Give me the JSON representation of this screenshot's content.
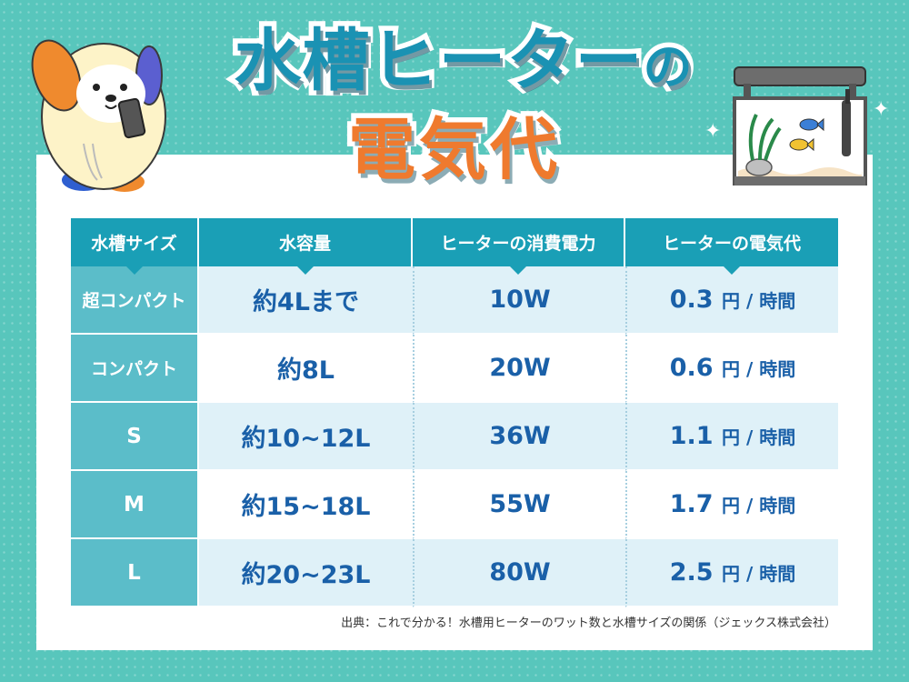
{
  "title": {
    "main": "水槽ヒーター",
    "particle": "の",
    "sub": "電気代"
  },
  "table": {
    "headers": [
      "水槽サイズ",
      "水容量",
      "ヒーターの消費電力",
      "ヒーターの電気代"
    ],
    "unit_label": "円 / 時間",
    "rows": [
      {
        "size": "超コンパクト",
        "volume": "約4Lまで",
        "power": "10W",
        "cost": "0.3"
      },
      {
        "size": "コンパクト",
        "volume": "約8L",
        "power": "20W",
        "cost": "0.6"
      },
      {
        "size": "S",
        "volume": "約10~12L",
        "power": "36W",
        "cost": "1.1"
      },
      {
        "size": "M",
        "volume": "約15~18L",
        "power": "55W",
        "cost": "1.7"
      },
      {
        "size": "L",
        "volume": "約20~23L",
        "power": "80W",
        "cost": "2.5"
      }
    ]
  },
  "source": "出典：これで分かる！水槽用ヒーターのワット数と水槽サイズの関係（ジェックス株式会社）",
  "icons": [
    "mascot-dog-icon",
    "smartphone-icon",
    "aquarium-icon",
    "fish-icon",
    "sparkle-icon"
  ],
  "colors": {
    "background": "#58c6bc",
    "header": "#1a9fb6",
    "size_column": "#5bbdc9",
    "title_blue": "#1a92b3",
    "title_orange": "#ef7a2e",
    "value_text": "#1a60a8",
    "stripe": "#dff1f8"
  }
}
